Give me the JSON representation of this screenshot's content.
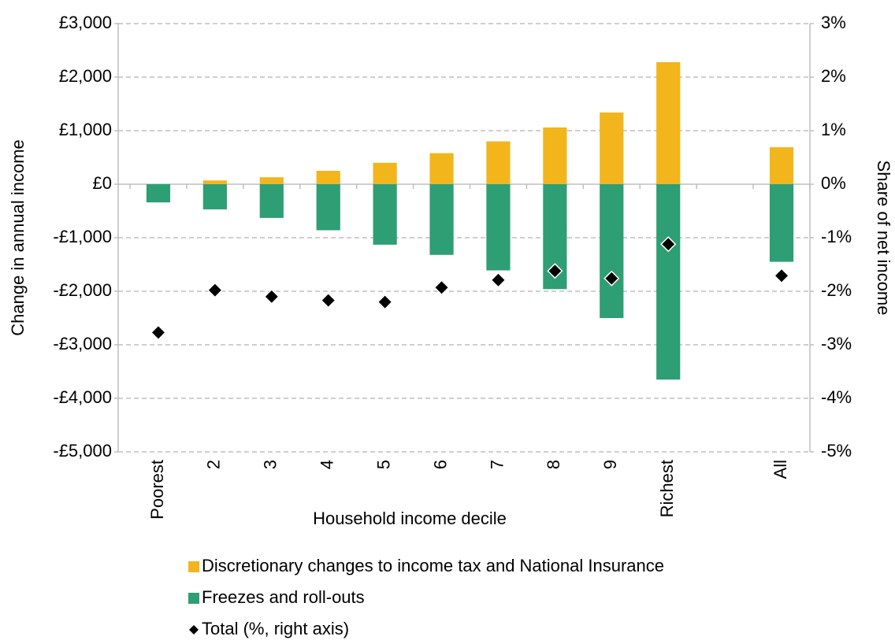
{
  "chart_data": {
    "type": "bar",
    "x_label": "Household income decile",
    "y_label": "Change in annual income",
    "y2_label": "Share of net income",
    "categories": [
      "Poorest",
      "2",
      "3",
      "4",
      "5",
      "6",
      "7",
      "8",
      "9",
      "Richest",
      null,
      "All"
    ],
    "series": [
      {
        "name": "Discretionary changes to income tax and National Insurance",
        "color": "#f2b51c",
        "values": [
          0,
          70,
          130,
          250,
          400,
          580,
          800,
          1060,
          1340,
          2280,
          null,
          690
        ]
      },
      {
        "name": "Freezes and roll-outs",
        "color": "#2e9e74",
        "values": [
          -340,
          -470,
          -630,
          -860,
          -1130,
          -1320,
          -1610,
          -1960,
          -2500,
          -3650,
          null,
          -1450
        ]
      },
      {
        "name": "Total (%, right axis)",
        "color": "#000000",
        "axis": "y2",
        "marker": "diamond",
        "values": [
          -2.77,
          -1.98,
          -2.1,
          -2.17,
          -2.2,
          -1.93,
          -1.79,
          -1.62,
          -1.76,
          -1.12,
          null,
          -1.71
        ]
      }
    ],
    "ylim": [
      -5000,
      3000
    ],
    "yticks": [
      {
        "value": 3000,
        "label": "£3,000"
      },
      {
        "value": 2000,
        "label": "£2,000"
      },
      {
        "value": 1000,
        "label": "£1,000"
      },
      {
        "value": 0,
        "label": "£0"
      },
      {
        "value": -1000,
        "label": "-£1,000"
      },
      {
        "value": -2000,
        "label": "-£2,000"
      },
      {
        "value": -3000,
        "label": "-£3,000"
      },
      {
        "value": -4000,
        "label": "-£4,000"
      },
      {
        "value": -5000,
        "label": "-£5,000"
      }
    ],
    "y2lim": [
      -5,
      3
    ],
    "y2ticks": [
      {
        "value": 3,
        "label": "3%"
      },
      {
        "value": 2,
        "label": "2%"
      },
      {
        "value": 1,
        "label": "1%"
      },
      {
        "value": 0,
        "label": "0%"
      },
      {
        "value": -1,
        "label": "-1%"
      },
      {
        "value": -2,
        "label": "-2%"
      },
      {
        "value": -3,
        "label": "-3%"
      },
      {
        "value": -4,
        "label": "-4%"
      },
      {
        "value": -5,
        "label": "-5%"
      }
    ],
    "grid": true
  }
}
